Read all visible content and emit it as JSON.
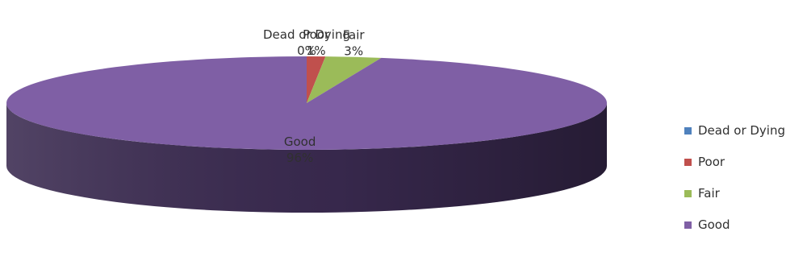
{
  "chart_data": {
    "type": "pie",
    "style": "3d",
    "categories": [
      "Dead or Dying",
      "Poor",
      "Fair",
      "Good"
    ],
    "values": [
      0,
      1,
      3,
      96
    ],
    "value_labels": [
      "0%",
      "1%",
      "3%",
      "96%"
    ],
    "colors": [
      "#4f81bd",
      "#c0504d",
      "#9bbb59",
      "#7f5fa5"
    ],
    "side_colors": [
      "#2c4a70",
      "#6e2b2a",
      "#566b30",
      "#3a2a50"
    ],
    "legend_position": "right"
  }
}
